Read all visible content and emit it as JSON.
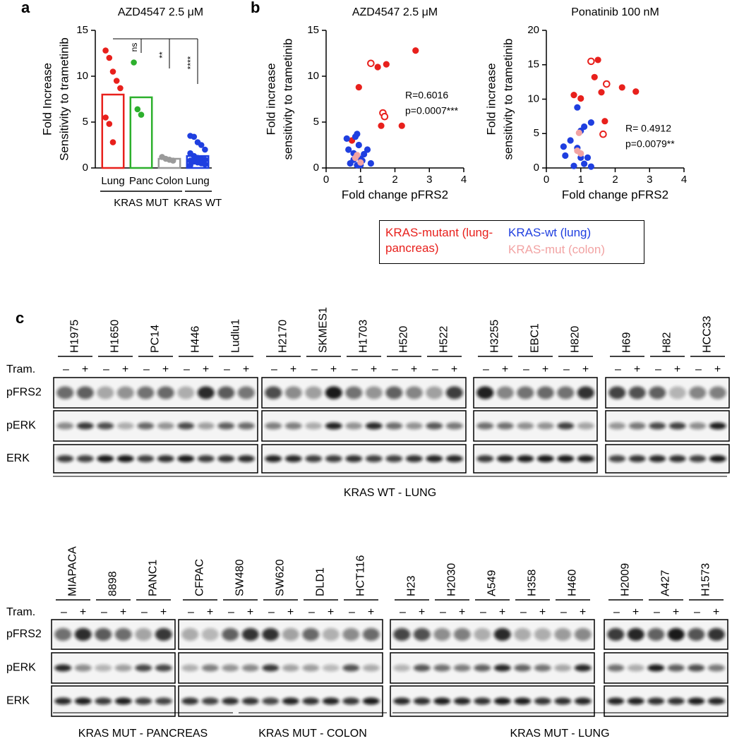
{
  "panel_labels": [
    "a",
    "b",
    "c"
  ],
  "chart_data": [
    {
      "type": "bar",
      "title": "AZD4547 2.5 μM",
      "ylabel": [
        "Fold Increase",
        "Sensitivity to trametinib"
      ],
      "categories": [
        "Lung",
        "Panc",
        "Colon",
        "Lung"
      ],
      "values": [
        8.0,
        7.7,
        1.0,
        1.3
      ],
      "colors": [
        "#e8201c",
        "#2db02d",
        "#9a9a9a",
        "#1f3fe0"
      ],
      "points": [
        [
          12.8,
          12.0,
          10.5,
          9.5,
          8.7,
          5.5,
          4.8,
          2.8
        ],
        [
          11.5,
          6.4,
          5.8
        ],
        [
          1.2,
          1.0,
          0.9,
          0.8
        ],
        [
          3.5,
          3.4,
          2.8,
          2.5,
          2.0,
          1.6,
          1.3,
          1.1,
          1.0,
          0.9,
          0.8,
          0.7,
          0.6,
          0.5,
          0.4,
          0.3
        ]
      ],
      "group_labels": [
        "KRAS MUT",
        "KRAS WT"
      ],
      "annotations": [
        "ns",
        "**",
        "****"
      ],
      "ylim": [
        0,
        15
      ],
      "yticks": [
        0,
        5,
        10,
        15
      ]
    },
    {
      "type": "scatter",
      "title": "AZD4547 2.5 μM",
      "xlabel": "Fold change pFRS2",
      "ylabel": [
        "Fold increase",
        "sensitivity to trametinib"
      ],
      "annotations": [
        "R=0.6016",
        "p=0.0007***"
      ],
      "xlim": [
        0,
        4
      ],
      "xticks": [
        0,
        1,
        2,
        3,
        4
      ],
      "ylim": [
        0,
        15
      ],
      "yticks": [
        0,
        5,
        10,
        15
      ],
      "series": [
        {
          "name": "KRAS-mutant (lung-pancreas)",
          "color": "#e8201c",
          "x": [
            0.75,
            0.95,
            1.5,
            1.75,
            2.6,
            1.6,
            2.2,
            1.3,
            1.65,
            1.7
          ],
          "y": [
            3.0,
            8.8,
            11.0,
            11.3,
            12.8,
            4.6,
            4.6,
            11.4,
            6.0,
            5.6
          ],
          "hollow": [
            false,
            false,
            false,
            false,
            false,
            false,
            false,
            true,
            true,
            true
          ]
        },
        {
          "name": "KRAS-wt (lung)",
          "color": "#1f3fe0",
          "x": [
            0.6,
            0.65,
            0.8,
            0.85,
            0.9,
            0.95,
            1.0,
            1.05,
            1.1,
            1.2,
            0.7,
            0.9,
            1.3,
            1.0,
            0.8
          ],
          "y": [
            3.2,
            2.0,
            1.6,
            3.4,
            3.7,
            2.5,
            1.0,
            0.8,
            1.5,
            2.0,
            0.5,
            0.3,
            0.5,
            0.3,
            0.9
          ]
        },
        {
          "name": "KRAS-mut (colon)",
          "color": "#f2a3a3",
          "x": [
            0.85,
            0.9,
            1.0
          ],
          "y": [
            1.1,
            1.4,
            0.6
          ]
        }
      ]
    },
    {
      "type": "scatter",
      "title": "Ponatinib 100 nM",
      "xlabel": "Fold change pFRS2",
      "ylabel": [
        "Fold increase",
        "sensitivity to trametinib"
      ],
      "annotations": [
        "R= 0.4912",
        "p=0.0079**"
      ],
      "xlim": [
        0,
        4
      ],
      "xticks": [
        0,
        1,
        2,
        3,
        4
      ],
      "ylim": [
        0,
        20
      ],
      "yticks": [
        0,
        5,
        10,
        15,
        20
      ],
      "series": [
        {
          "color": "#e8201c",
          "x": [
            0.8,
            1.0,
            1.5,
            1.4,
            1.6,
            2.2,
            2.6,
            1.7,
            1.3,
            1.75,
            1.65
          ],
          "y": [
            10.6,
            10.1,
            15.7,
            13.2,
            11.0,
            11.7,
            11.1,
            6.8,
            15.5,
            12.2,
            4.9
          ],
          "hollow": [
            false,
            false,
            false,
            false,
            false,
            false,
            false,
            false,
            true,
            true,
            true
          ]
        },
        {
          "color": "#1f3fe0",
          "x": [
            0.5,
            0.55,
            0.9,
            1.0,
            1.1,
            1.3,
            0.7,
            0.9,
            1.0,
            1.2,
            1.1,
            0.8,
            1.3
          ],
          "y": [
            3.1,
            1.8,
            8.8,
            5.4,
            6.0,
            6.6,
            4.0,
            2.9,
            1.5,
            1.5,
            0.6,
            0.3,
            0.2
          ]
        },
        {
          "color": "#f2a3a3",
          "x": [
            0.95,
            1.0,
            0.9
          ],
          "y": [
            5.1,
            2.1,
            2.5
          ]
        }
      ]
    }
  ],
  "blots": {
    "treatment_label": "Tram.",
    "signs": [
      "–",
      "+"
    ],
    "row_labels": [
      "pFRS2",
      "pERK",
      "ERK"
    ],
    "panels": [
      {
        "groups": [
          [
            "H1975",
            "H1650",
            "PC14",
            "H446",
            "Ludlu1"
          ],
          [
            "H2170",
            "SKMES1",
            "H1703",
            "H520",
            "H522"
          ],
          [
            "H3255",
            "EBC1",
            "H820"
          ],
          [
            "H69",
            "H82",
            "HCC33"
          ]
        ],
        "footer": [
          "KRAS WT - LUNG"
        ]
      },
      {
        "groups": [
          [
            "MIAPACA",
            "8898",
            "PANC1"
          ],
          [
            "CFPAC",
            "SW480",
            "SW620",
            "DLD1",
            "HCT116"
          ],
          [
            "H23",
            "H2030",
            "A549",
            "H358",
            "H460"
          ],
          [
            "H2009",
            "A427",
            "H1573"
          ]
        ],
        "footer": [
          "KRAS MUT - PANCREAS",
          "KRAS MUT - COLON",
          "KRAS MUT - LUNG"
        ]
      }
    ]
  }
}
